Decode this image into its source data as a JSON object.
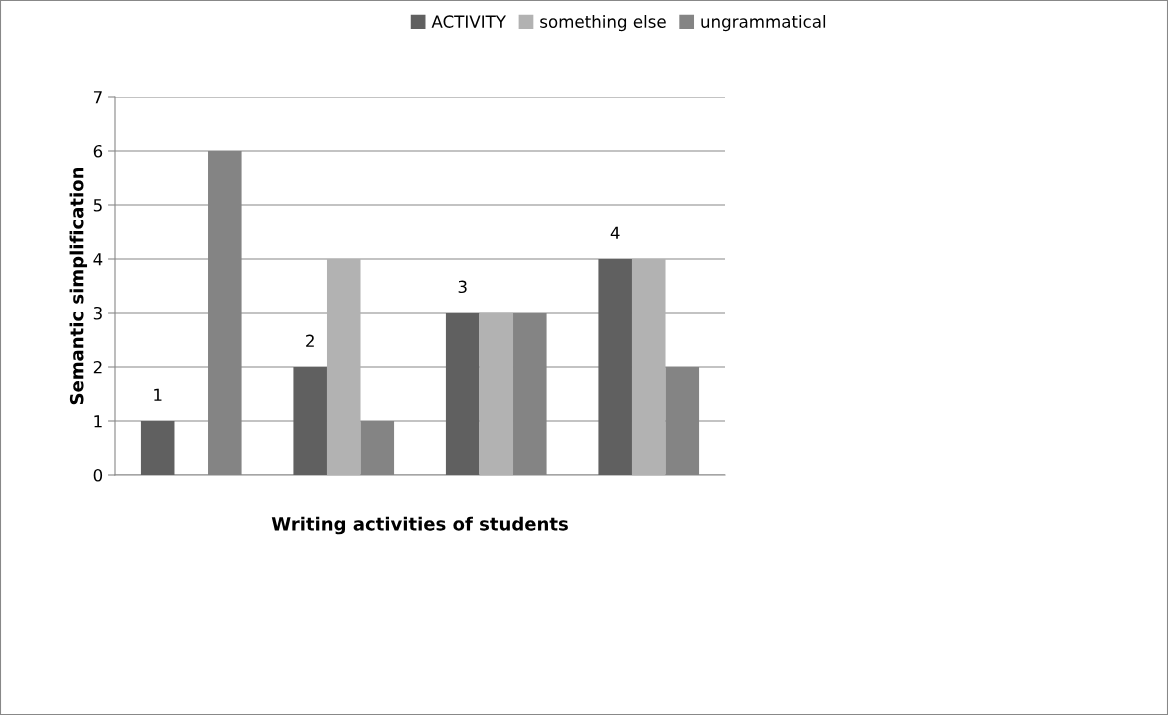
{
  "chart_data": {
    "type": "bar",
    "xlabel": "Writing activities of students",
    "ylabel": "Semantic simplification",
    "categories": [
      null,
      null,
      null,
      null
    ],
    "series": [
      {
        "name": "ACTIVITY",
        "color": "#606060",
        "values": [
          1,
          2,
          3,
          4
        ],
        "value_labels": [
          "1",
          "2",
          "3",
          "4"
        ]
      },
      {
        "name": "something else",
        "color": "#b2b2b2",
        "values": [
          null,
          4,
          3,
          4
        ]
      },
      {
        "name": "ungrammatical",
        "color": "#848484",
        "values": [
          6,
          1,
          3,
          2
        ]
      }
    ],
    "ylim": [
      0,
      7
    ],
    "yticks": [
      0,
      1,
      2,
      3,
      4,
      5,
      6,
      7
    ],
    "grid": "y",
    "legend": "top",
    "tick_labels": "y"
  }
}
